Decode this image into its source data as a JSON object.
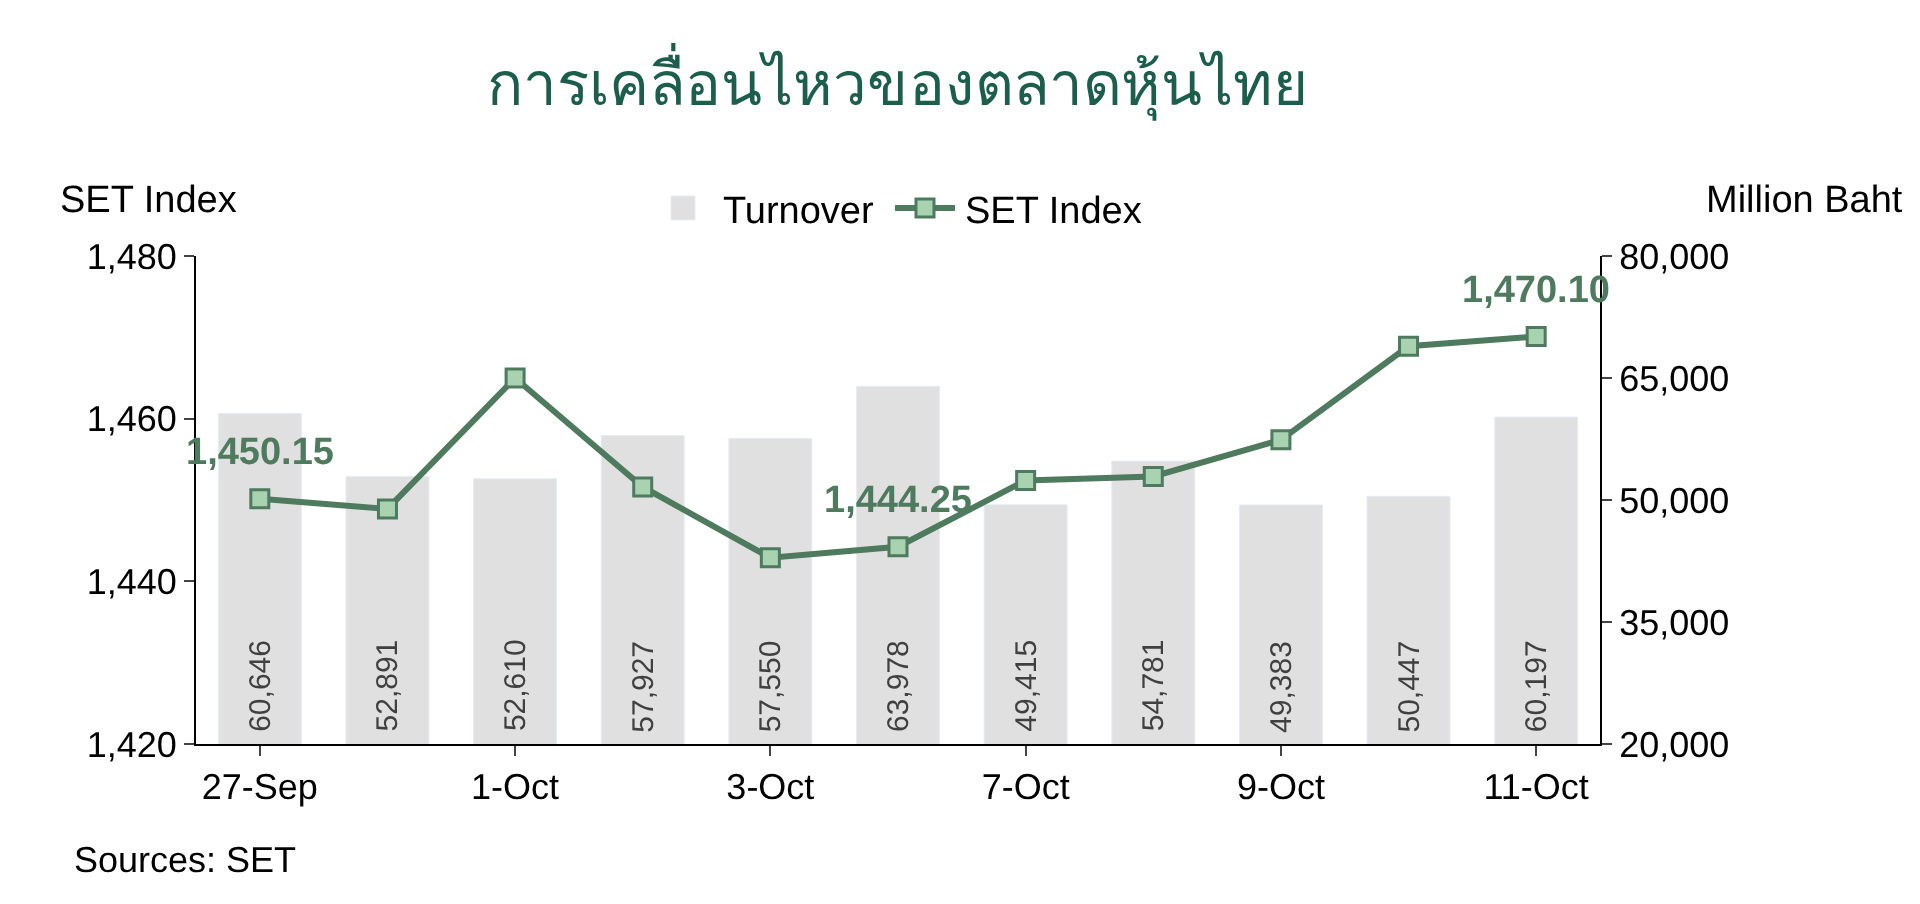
{
  "chart_data": {
    "type": "bar",
    "title": "การเคลื่อนไหวของตลาดหุ้นไทย",
    "ylabel": "SET Index",
    "y2label": "Million Baht",
    "categories": [
      "27-Sep",
      null,
      "1-Oct",
      null,
      "3-Oct",
      null,
      "7-Oct",
      null,
      "9-Oct",
      null,
      "11-Oct"
    ],
    "series": [
      {
        "name": "Turnover",
        "axis": "y2",
        "color": "#e0e0e0",
        "values": [
          60646,
          52891,
          52610,
          57927,
          57550,
          63978,
          49415,
          54781,
          49383,
          50447,
          60197
        ],
        "value_labels": [
          "60,646",
          "52,891",
          "52,610",
          "57,927",
          "57,550",
          "63,978",
          "49,415",
          "54,781",
          "49,383",
          "50,447",
          "60,197"
        ]
      },
      {
        "name": "SET Index",
        "type": "line",
        "axis": "y",
        "color": "#4e7a5e",
        "marker": "square",
        "line_style": "solid",
        "values": [
          1450.15,
          1448.9,
          1465.0,
          1451.6,
          1442.9,
          1444.25,
          1452.4,
          1452.9,
          1457.4,
          1468.9,
          1470.1
        ],
        "value_labels": [
          "1,450.15",
          null,
          null,
          null,
          null,
          "1,444.25",
          null,
          null,
          null,
          null,
          "1,470.10"
        ]
      }
    ],
    "ylim": [
      1420,
      1480
    ],
    "yticks": [
      {
        "value": 1420,
        "label": "1,420"
      },
      {
        "value": 1440,
        "label": "1,440"
      },
      {
        "value": 1460,
        "label": "1,460"
      },
      {
        "value": 1480,
        "label": "1,480"
      }
    ],
    "y2lim": [
      20000,
      80000
    ],
    "y2ticks": [
      {
        "value": 20000,
        "label": "20,000"
      },
      {
        "value": 35000,
        "label": "35,000"
      },
      {
        "value": 50000,
        "label": "50,000"
      },
      {
        "value": 65000,
        "label": "65,000"
      },
      {
        "value": 80000,
        "label": "80,000"
      }
    ],
    "legend": "top",
    "annotations": [
      "Sources: SET"
    ]
  }
}
